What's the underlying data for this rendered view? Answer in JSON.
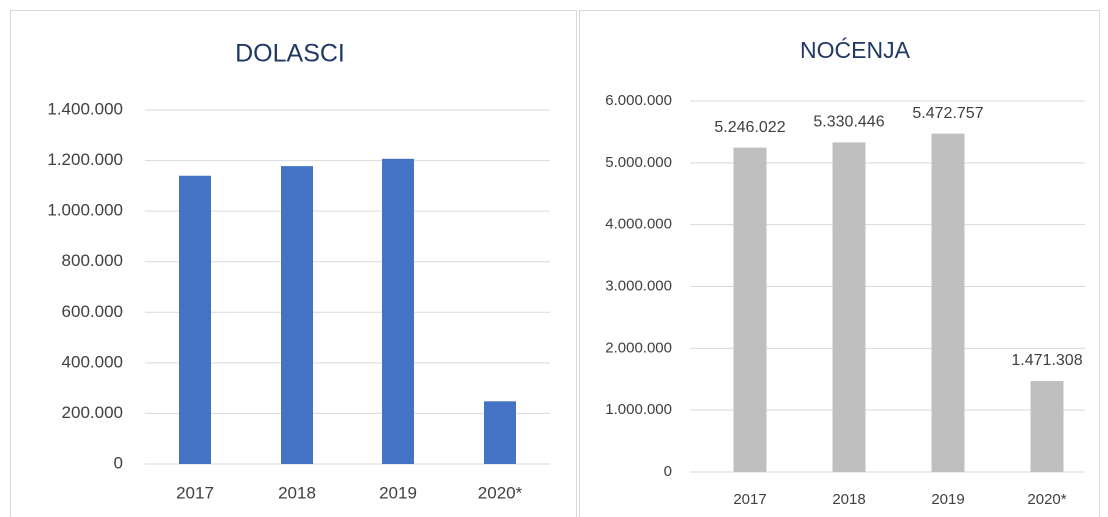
{
  "chart_data": [
    {
      "type": "bar",
      "title": "DOLASCI",
      "categories": [
        "2017",
        "2018",
        "2019",
        "2020*"
      ],
      "values": [
        1140000,
        1178000,
        1207000,
        248000
      ],
      "color": "#4472c4",
      "ylim": [
        0,
        1400000
      ],
      "yticks": [
        0,
        {
          "value": 200000,
          "label": "200.000"
        },
        {
          "value": 400000,
          "label": "400.000"
        },
        {
          "value": 600000,
          "label": "600.000"
        },
        {
          "value": 800000,
          "label": "800.000"
        },
        {
          "value": 1000000,
          "label": "1.000.000"
        },
        {
          "value": 1200000,
          "label": "1.200.000"
        },
        {
          "value": 1400000,
          "label": "1.400.000"
        }
      ],
      "grid": true
    },
    {
      "type": "bar",
      "title": "NOĆENJA",
      "categories": [
        "2017",
        "2018",
        "2019",
        "2020*"
      ],
      "values": [
        5246022,
        5330446,
        5472757,
        1471308
      ],
      "value_labels": [
        "5.246.022",
        "5.330.446",
        "5.472.757",
        "1.471.308"
      ],
      "color": "#bfbfbf",
      "ylim": [
        0,
        6000000
      ],
      "yticks": [
        0,
        {
          "value": 1000000,
          "label": "1.000.000"
        },
        {
          "value": 2000000,
          "label": "2.000.000"
        },
        {
          "value": 3000000,
          "label": "3.000.000"
        },
        {
          "value": 4000000,
          "label": "4.000.000"
        },
        {
          "value": 5000000,
          "label": "5.000.000"
        },
        {
          "value": 6000000,
          "label": "6.000.000"
        }
      ],
      "grid": true
    }
  ]
}
